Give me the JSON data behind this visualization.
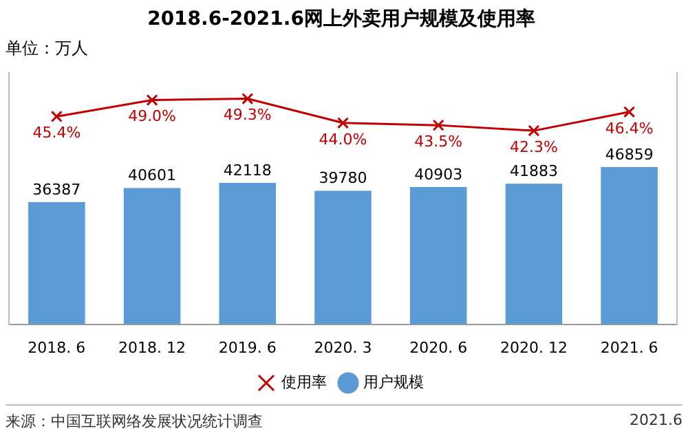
{
  "chart_data": {
    "type": "bar",
    "title": "2018.6-2021.6网上外卖用户规模及使用率",
    "categories": [
      "2018. 6",
      "2018. 12",
      "2019. 6",
      "2020. 3",
      "2020. 6",
      "2020. 12",
      "2021. 6"
    ],
    "series": [
      {
        "name": "用户规模",
        "color": "#5b9bd5",
        "values": [
          36387,
          40601,
          42118,
          39780,
          40903,
          41883,
          46859
        ]
      },
      {
        "name": "使用率",
        "type": "line",
        "axis": "y2",
        "color": "#c00000",
        "values": [
          45.4,
          49.0,
          49.3,
          44.0,
          43.5,
          42.3,
          46.4
        ],
        "value_labels": [
          "45.4%",
          "49.0%",
          "49.3%",
          "44.0%",
          "43.5%",
          "42.3%",
          "46.4%"
        ]
      }
    ],
    "ylim": [
      0,
      75000
    ],
    "y2lim": [
      0,
      55
    ],
    "tick_labels": "x",
    "data_labels": true,
    "marker": "cross",
    "legend": "bottom",
    "annotations": [
      "单位：万人",
      "来源：中国互联网络发展状况统计调查",
      "2021.6"
    ]
  }
}
